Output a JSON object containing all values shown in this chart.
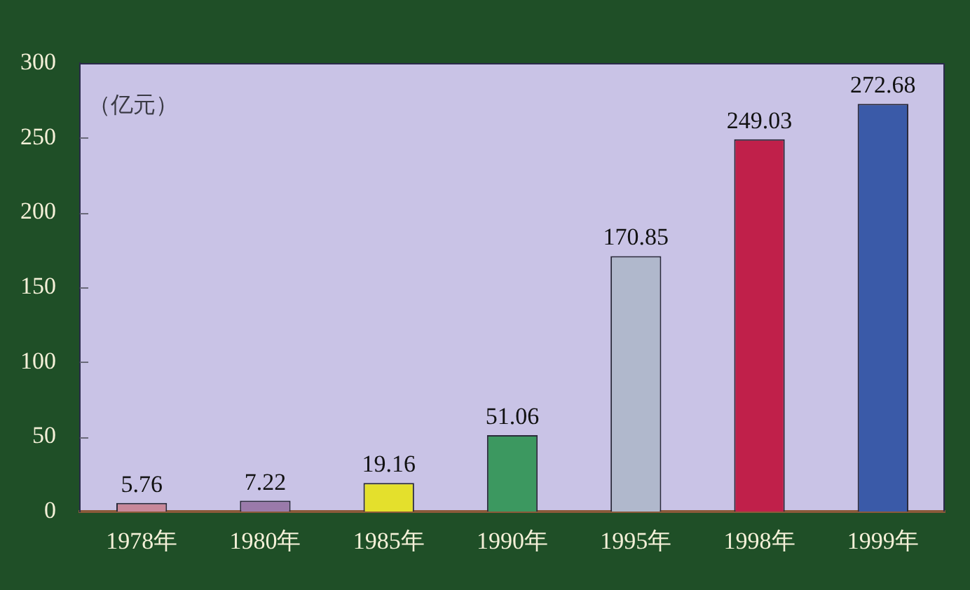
{
  "chart_data": {
    "type": "bar",
    "ylabel": "（亿元）",
    "categories": [
      "1978年",
      "1980年",
      "1985年",
      "1990年",
      "1995年",
      "1998年",
      "1999年"
    ],
    "values": [
      5.76,
      7.22,
      19.16,
      51.06,
      170.85,
      249.03,
      272.68
    ],
    "colors": [
      "#c8889a",
      "#9a7aaa",
      "#e4e02c",
      "#3c9860",
      "#b0b8cc",
      "#c0204a",
      "#3a5aa8"
    ],
    "ylim": [
      0,
      300
    ],
    "yticks": [
      0,
      50,
      100,
      150,
      200,
      250,
      300
    ],
    "grid": false,
    "legend": false,
    "data_labels": true
  }
}
